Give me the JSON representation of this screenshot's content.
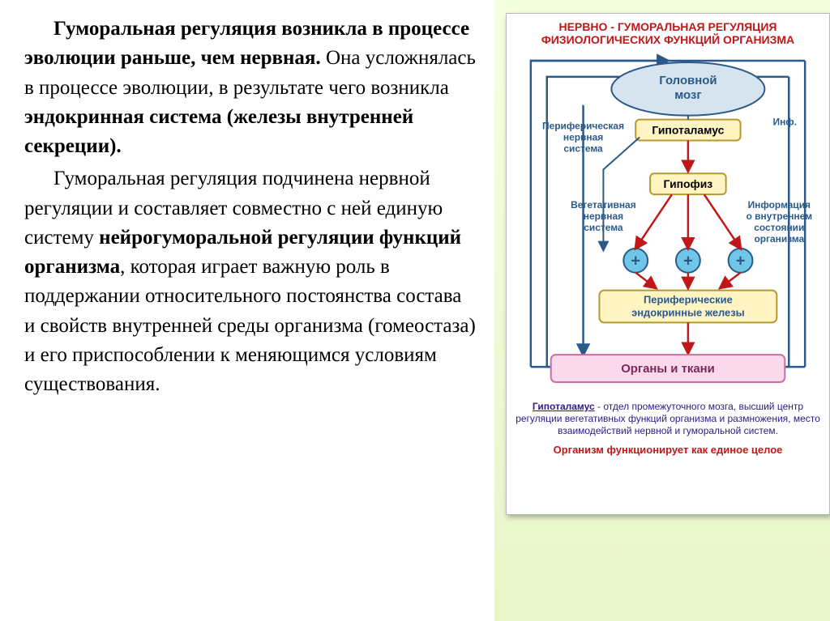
{
  "text": {
    "para1_part1": "Гуморальная регуляция возникла в процессе эволюции раньше, чем нервная.",
    "para1_part2": " Она усложнялась в процессе эволюции, в результате чего возникла ",
    "para1_endocrine": " эндокринная система (железы внутренней секреции).",
    "para2_part1": "Гуморальная регуляция подчинена нервной регуляции и составляет совместно с ней единую систему ",
    "para2_bold": "нейрогуморальной регуляции функций организма",
    "para2_part2": ", которая играет важную роль в поддержании относительного постоянства состава и свойств внутренней среды организма (гомеостаза) и его приспособлении к меняющимся условиям существования."
  },
  "diagram": {
    "title": "НЕРВНО - ГУМОРАЛЬНАЯ РЕГУЛЯЦИЯ\nФИЗИОЛОГИЧЕСКИХ ФУНКЦИЙ ОРГАНИЗМА",
    "title_color": "#c01818",
    "title_fontsize": 14,
    "brain": "Головной\nмозг",
    "hypothalamus": "Гипоталамус",
    "hypophysis": "Гипофиз",
    "pns_label": "Периферическая\nнервная\nсистема",
    "ans_label": "Вегетативная\nнервная\nсистема",
    "info_label": "Информация\nо внутреннем\nсостоянии\nорганизма",
    "info_short": "Инф.",
    "peripheral_glands": "Периферические\nэндокринные железы",
    "organs": "Органы и ткани",
    "plus": "+",
    "caption_bold": "Гипоталамус",
    "caption_rest": " - отдел промежуточного мозга, высший центр регуляции вегетативных функций организма и размножения, место взаимодействий нервной и гуморальной систем.",
    "caption2": "Организм функционирует как единое целое",
    "colors": {
      "brain_fill": "#d5e4ee",
      "brain_stroke": "#2b5a8a",
      "hypothalamus_fill": "#fff4c2",
      "hypothalamus_stroke": "#b8972f",
      "hypophysis_fill": "#fff4c2",
      "hypophysis_stroke": "#b8972f",
      "glands_fill": "#fff4c2",
      "glands_stroke": "#b8972f",
      "organs_fill": "#f9d9ea",
      "organs_stroke": "#c96fa5",
      "plus_fill": "#6fc7e8",
      "plus_stroke": "#2b5a8a",
      "arrow_blue": "#2b5a8a",
      "arrow_red": "#c01818",
      "caption_purple": "#2a1a8a",
      "caption2_color": "#c01818",
      "text_blue": "#2b5a8a"
    }
  }
}
